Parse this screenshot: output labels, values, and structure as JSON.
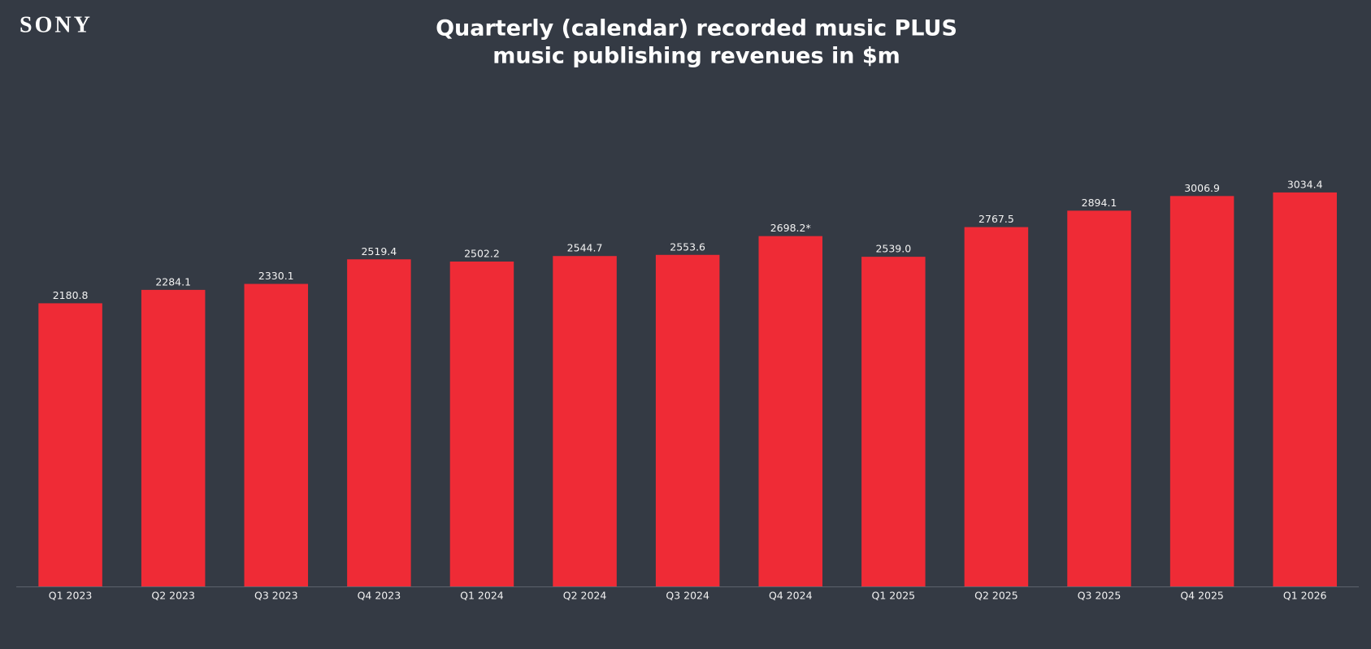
{
  "chart_data": {
    "type": "bar",
    "logo": "SONY",
    "title": [
      "Quarterly (calendar) recorded music PLUS",
      "music publishing revenues in $m"
    ],
    "categories": [
      "Q1 2023",
      "Q2 2023",
      "Q3 2023",
      "Q4 2023",
      "Q1 2024",
      "Q2 2024",
      "Q3 2024",
      "Q4 2024",
      "Q1 2025",
      "Q2 2025",
      "Q3 2025",
      "Q4 2025",
      "Q1 2026"
    ],
    "values": [
      2180.8,
      2284.1,
      2330.1,
      2519.4,
      2502.2,
      2544.7,
      2553.6,
      2698.2,
      2539.0,
      2767.5,
      2894.1,
      3006.9,
      3034.4
    ],
    "value_labels": [
      "2180.8",
      "2284.1",
      "2330.1",
      "2519.4",
      "2502.2",
      "2544.7",
      "2553.6",
      "2698.2*",
      "2539.0",
      "2767.5",
      "2894.1",
      "3006.9",
      "3034.4"
    ],
    "color": "#ef2b36",
    "ylim": [
      0,
      3500
    ]
  }
}
